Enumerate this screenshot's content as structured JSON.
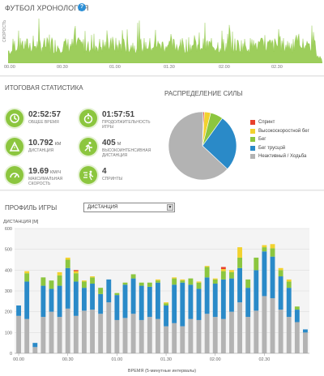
{
  "timeline": {
    "title": "ФУТБОЛ ХРОНОЛОГИЯ",
    "help_icon": "?",
    "axis_label": "СКОРОСТЬ",
    "ticks": [
      "00.00",
      "00.30",
      "01.00",
      "01.30",
      "02.00",
      "02.30"
    ],
    "color": "#8cc63f"
  },
  "summary": {
    "title": "ИТОГОВАЯ СТАТИСТИКА",
    "stats": [
      {
        "value": "02:52:57",
        "unit": "",
        "label": "ОБЩЕЕ ВРЕМЯ",
        "icon": "clock-icon"
      },
      {
        "value": "01:57:51",
        "unit": "",
        "label": "ПРОДОЛЖИТЕЛЬНОСТЬ ИГРЫ",
        "icon": "stopwatch-icon"
      },
      {
        "value": "10.792",
        "unit": "КМ",
        "label": "ДИСТАНЦИЯ",
        "icon": "distance-icon"
      },
      {
        "value": "405",
        "unit": "М",
        "label": "ВЫСОКОИНТЕНСИВНАЯ ДИСТАНЦИЯ",
        "icon": "running-icon"
      },
      {
        "value": "19.69",
        "unit": "КМ/Ч",
        "label": "МАКСИМАЛЬНАЯ СКОРОСТЬ",
        "icon": "speedometer-icon"
      },
      {
        "value": "4",
        "unit": "",
        "label": "СПРИНТЫ",
        "icon": "sprint-icon"
      }
    ]
  },
  "distribution": {
    "title": "РАСПРЕДЕЛЕНИЕ СИЛЫ",
    "items": [
      {
        "label": "Спринт",
        "color": "#e8412c",
        "share": 0.6
      },
      {
        "label": "Высокоскоростной бег",
        "color": "#f2d22e",
        "share": 3.0
      },
      {
        "label": "Бег",
        "color": "#8cc63f",
        "share": 6.0
      },
      {
        "label": "Бег трусцой",
        "color": "#2a8ac8",
        "share": 27.0
      },
      {
        "label": "Неактивный / Ходьба",
        "color": "#b3b3b3",
        "share": 63.4
      }
    ]
  },
  "profile": {
    "title": "ПРОФИЛЬ ИГРЫ",
    "select_value": "ДИСТАНЦИЯ",
    "ylabel": "ДИСТАНЦИЯ [М]"
  },
  "chart_data": {
    "type": "bar",
    "stacked": true,
    "xlabel": "ВРЕМЯ (5-минутные интервалы)",
    "ylabel": "ДИСТАНЦИЯ [М]",
    "ylim": [
      0,
      600
    ],
    "yticks": [
      0,
      100,
      200,
      300,
      400,
      500,
      600
    ],
    "xticks": [
      {
        "label": "00.00",
        "index": 0
      },
      {
        "label": "00.30",
        "index": 6
      },
      {
        "label": "01.00",
        "index": 12
      },
      {
        "label": "01.30",
        "index": 18
      },
      {
        "label": "02.00",
        "index": 24
      },
      {
        "label": "02.30",
        "index": 30
      }
    ],
    "grid": true,
    "series": [
      {
        "name": "Неактивный / Ходьба",
        "color": "#b3b3b3",
        "values": [
          180,
          165,
          30,
          175,
          200,
          175,
          215,
          180,
          205,
          210,
          190,
          245,
          160,
          170,
          190,
          160,
          175,
          165,
          130,
          145,
          130,
          165,
          160,
          190,
          175,
          165,
          200,
          245,
          175,
          205,
          275,
          265,
          210,
          175,
          150,
          100
        ]
      },
      {
        "name": "Бег трусцой",
        "color": "#2a8ac8",
        "values": [
          50,
          180,
          20,
          150,
          110,
          150,
          195,
          165,
          110,
          125,
          95,
          110,
          120,
          160,
          170,
          165,
          145,
          175,
          100,
          185,
          210,
          165,
          150,
          175,
          160,
          190,
          160,
          165,
          140,
          195,
          215,
          200,
          160,
          140,
          60,
          15
        ]
      },
      {
        "name": "Бег",
        "color": "#8cc63f",
        "values": [
          0,
          40,
          0,
          40,
          40,
          50,
          40,
          40,
          30,
          30,
          30,
          0,
          10,
          10,
          20,
          15,
          20,
          10,
          10,
          30,
          10,
          30,
          30,
          50,
          20,
          40,
          30,
          50,
          40,
          60,
          20,
          40,
          30,
          30,
          15,
          0
        ]
      },
      {
        "name": "Высокоскоростной бег",
        "color": "#f2d22e",
        "values": [
          0,
          10,
          0,
          0,
          0,
          15,
          10,
          10,
          5,
          5,
          0,
          0,
          0,
          0,
          0,
          0,
          0,
          5,
          5,
          5,
          5,
          0,
          5,
          5,
          5,
          10,
          10,
          50,
          0,
          0,
          10,
          20,
          10,
          10,
          0,
          0
        ]
      },
      {
        "name": "Спринт",
        "color": "#e8412c",
        "values": [
          0,
          0,
          0,
          0,
          0,
          0,
          0,
          5,
          0,
          0,
          0,
          0,
          0,
          0,
          0,
          0,
          0,
          0,
          0,
          0,
          0,
          0,
          0,
          0,
          0,
          10,
          0,
          0,
          0,
          0,
          0,
          0,
          0,
          0,
          0,
          0
        ]
      }
    ]
  }
}
